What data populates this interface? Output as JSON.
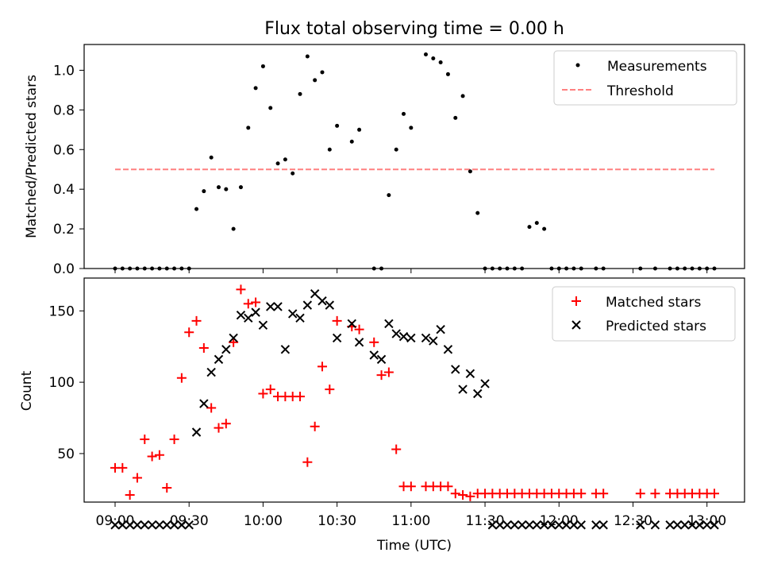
{
  "title": "Flux total observing time = 0.00 h",
  "chart_data": [
    {
      "type": "scatter",
      "title": "Flux total observing time = 0.00 h",
      "ylabel": "Matched/Predicted stars",
      "ylim": [
        0,
        1.13
      ],
      "yticks": [
        "0.0",
        "0.2",
        "0.4",
        "0.6",
        "0.8",
        "1.0"
      ],
      "legend_position": "top-right",
      "series": [
        {
          "name": "Measurements",
          "marker": "dot",
          "color": "#000000",
          "x": [
            "09:00",
            "09:03",
            "09:06",
            "09:09",
            "09:12",
            "09:15",
            "09:18",
            "09:21",
            "09:24",
            "09:27",
            "09:30",
            "09:33",
            "09:36",
            "09:39",
            "09:42",
            "09:45",
            "09:48",
            "09:51",
            "09:54",
            "09:57",
            "10:00",
            "10:03",
            "10:06",
            "10:09",
            "10:12",
            "10:15",
            "10:18",
            "10:21",
            "10:24",
            "10:27",
            "10:30",
            "10:36",
            "10:39",
            "10:45",
            "10:48",
            "10:51",
            "10:54",
            "10:57",
            "11:00",
            "11:06",
            "11:09",
            "11:12",
            "11:15",
            "11:18",
            "11:21",
            "11:24",
            "11:27",
            "11:30",
            "11:33",
            "11:36",
            "11:39",
            "11:42",
            "11:45",
            "11:48",
            "11:51",
            "11:54",
            "11:57",
            "12:00",
            "12:03",
            "12:06",
            "12:09",
            "12:15",
            "12:18",
            "12:33",
            "12:39",
            "12:45",
            "12:48",
            "12:51",
            "12:54",
            "12:57",
            "13:00",
            "13:03"
          ],
          "y": [
            0.0,
            0.0,
            0.0,
            0.0,
            0.0,
            0.0,
            0.0,
            0.0,
            0.0,
            0.0,
            0.0,
            0.3,
            0.39,
            0.56,
            0.41,
            0.4,
            0.2,
            0.41,
            0.71,
            0.91,
            1.02,
            0.81,
            0.53,
            0.55,
            0.48,
            0.88,
            1.07,
            0.95,
            0.99,
            0.6,
            0.72,
            0.64,
            0.7,
            0.0,
            0.0,
            0.37,
            0.6,
            0.78,
            0.71,
            1.08,
            1.06,
            1.04,
            0.98,
            0.76,
            0.87,
            0.49,
            0.28,
            0.0,
            0.0,
            0.0,
            0.0,
            0.0,
            0.0,
            0.21,
            0.23,
            0.2,
            0.0,
            0.0,
            0.0,
            0.0,
            0.0,
            0.0,
            0.0,
            0.0,
            0.0,
            0.0,
            0.0,
            0.0,
            0.0,
            0.0,
            0.0,
            0.0
          ]
        },
        {
          "name": "Threshold",
          "marker": "dashed-line",
          "color": "#ff8080",
          "x": [
            "09:00",
            "13:03"
          ],
          "y": [
            0.5,
            0.5
          ]
        }
      ]
    },
    {
      "type": "scatter",
      "xlabel": "Time (UTC)",
      "ylabel": "Count",
      "ylim": [
        16,
        173
      ],
      "yticks": [
        "50",
        "100",
        "150"
      ],
      "xticks": [
        "09:00",
        "09:30",
        "10:00",
        "10:30",
        "11:00",
        "11:30",
        "12:00",
        "12:30",
        "13:00"
      ],
      "legend_position": "top-right",
      "series": [
        {
          "name": "Matched stars",
          "marker": "plus",
          "color": "#ff0000",
          "x": [
            "09:00",
            "09:03",
            "09:06",
            "09:09",
            "09:12",
            "09:15",
            "09:18",
            "09:21",
            "09:24",
            "09:27",
            "09:30",
            "09:33",
            "09:36",
            "09:39",
            "09:42",
            "09:45",
            "09:48",
            "09:51",
            "09:54",
            "09:57",
            "10:00",
            "10:03",
            "10:06",
            "10:09",
            "10:12",
            "10:15",
            "10:18",
            "10:21",
            "10:24",
            "10:27",
            "10:30",
            "10:36",
            "10:39",
            "10:45",
            "10:48",
            "10:51",
            "10:54",
            "10:57",
            "11:00",
            "11:06",
            "11:09",
            "11:12",
            "11:15",
            "11:18",
            "11:21",
            "11:24",
            "11:27",
            "11:30",
            "11:33",
            "11:36",
            "11:39",
            "11:42",
            "11:45",
            "11:48",
            "11:51",
            "11:54",
            "11:57",
            "12:00",
            "12:03",
            "12:06",
            "12:09",
            "12:15",
            "12:18",
            "12:33",
            "12:39",
            "12:45",
            "12:48",
            "12:51",
            "12:54",
            "12:57",
            "13:00",
            "13:03"
          ],
          "y": [
            40,
            40,
            21,
            33,
            60,
            48,
            49,
            26,
            60,
            103,
            135,
            143,
            124,
            82,
            68,
            71,
            128,
            165,
            155,
            156,
            92,
            95,
            90,
            90,
            90,
            90,
            44,
            69,
            111,
            95,
            143,
            139,
            137,
            128,
            105,
            107,
            53,
            27,
            27,
            27,
            27,
            27,
            27,
            22,
            21,
            20,
            22,
            22,
            22,
            22,
            22,
            22,
            22,
            22,
            22,
            22,
            22,
            22,
            22,
            22,
            22,
            22,
            22,
            22,
            22,
            22,
            22,
            22,
            22,
            22,
            22,
            22
          ]
        },
        {
          "name": "Predicted stars",
          "marker": "x",
          "color": "#000000",
          "x": [
            "09:00",
            "09:03",
            "09:06",
            "09:09",
            "09:12",
            "09:15",
            "09:18",
            "09:21",
            "09:24",
            "09:27",
            "09:30",
            "09:33",
            "09:36",
            "09:39",
            "09:42",
            "09:45",
            "09:48",
            "09:51",
            "09:54",
            "09:57",
            "10:00",
            "10:03",
            "10:06",
            "10:09",
            "10:12",
            "10:15",
            "10:18",
            "10:21",
            "10:24",
            "10:27",
            "10:30",
            "10:36",
            "10:39",
            "10:45",
            "10:48",
            "10:51",
            "10:54",
            "10:57",
            "11:00",
            "11:06",
            "11:09",
            "11:12",
            "11:15",
            "11:18",
            "11:21",
            "11:24",
            "11:27",
            "11:30",
            "11:33",
            "11:36",
            "11:39",
            "11:42",
            "11:45",
            "11:48",
            "11:51",
            "11:54",
            "11:57",
            "12:00",
            "12:03",
            "12:06",
            "12:09",
            "12:15",
            "12:18",
            "12:33",
            "12:39",
            "12:45",
            "12:48",
            "12:51",
            "12:54",
            "12:57",
            "13:00",
            "13:03"
          ],
          "y": [
            0,
            0,
            0,
            0,
            0,
            0,
            0,
            0,
            0,
            0,
            0,
            65,
            85,
            107,
            116,
            123,
            131,
            147,
            145,
            149,
            140,
            153,
            153,
            123,
            148,
            145,
            154,
            162,
            157,
            154,
            131,
            141,
            128,
            119,
            116,
            141,
            134,
            132,
            131,
            131,
            129,
            137,
            123,
            109,
            95,
            106,
            92,
            99,
            0,
            0,
            0,
            0,
            0,
            0,
            0,
            0,
            0,
            0,
            0,
            0,
            0,
            0,
            0,
            0,
            0,
            0,
            0,
            0,
            0,
            0,
            0,
            0
          ]
        }
      ]
    }
  ]
}
